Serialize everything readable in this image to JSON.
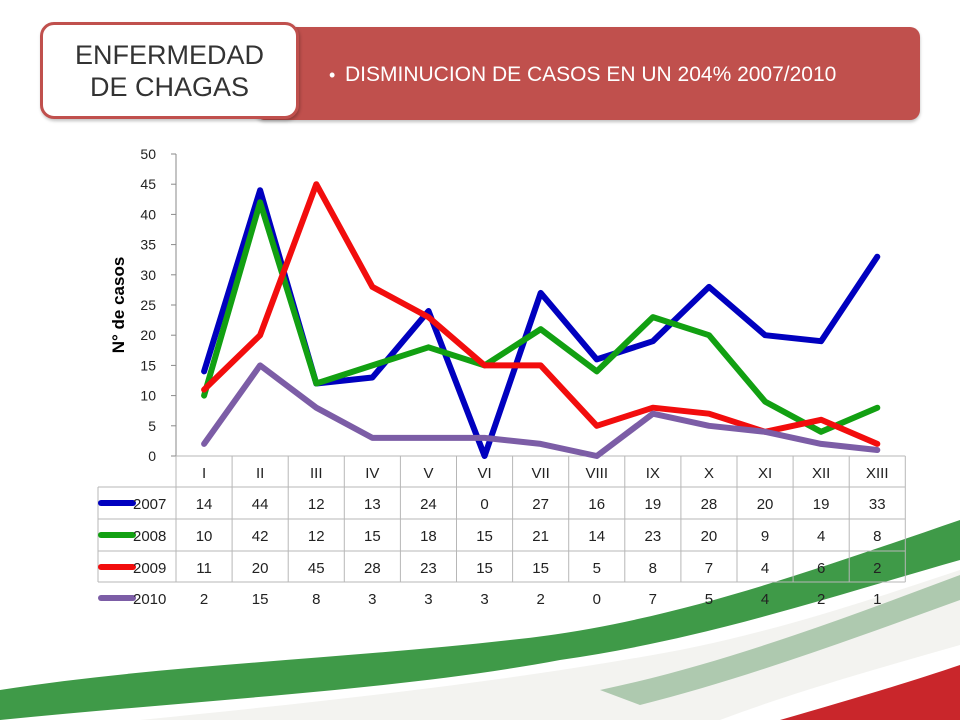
{
  "header": {
    "title": "ENFERMEDAD DE CHAGAS",
    "bullet_glyph": "•",
    "banner_text": "DISMINUCION DE CASOS EN UN 204%  2007/2010"
  },
  "colors": {
    "banner": "#c0504d",
    "series_2007": "#0000bf",
    "series_2008": "#12a012",
    "series_2009": "#f20d0d",
    "series_2010": "#7c5da6"
  },
  "chart_data": {
    "type": "line",
    "title": "",
    "xlabel": "",
    "ylabel": "N° de casos",
    "ylim": [
      0,
      50
    ],
    "yticks": [
      "0",
      "5",
      "10",
      "15",
      "20",
      "25",
      "30",
      "35",
      "40",
      "45",
      "50"
    ],
    "grid": false,
    "legend": "data-table-below",
    "categories": [
      "I",
      "II",
      "III",
      "IV",
      "V",
      "VI",
      "VII",
      "VIII",
      "IX",
      "X",
      "XI",
      "XII",
      "XIII"
    ],
    "series": [
      {
        "name": "2007",
        "color": "#0000bf",
        "values": [
          14,
          44,
          12,
          13,
          24,
          0,
          27,
          16,
          19,
          28,
          20,
          19,
          33
        ]
      },
      {
        "name": "2008",
        "color": "#12a012",
        "values": [
          10,
          42,
          12,
          15,
          18,
          15,
          21,
          14,
          23,
          20,
          9,
          4,
          8
        ]
      },
      {
        "name": "2009",
        "color": "#f20d0d",
        "values": [
          11,
          20,
          45,
          28,
          23,
          15,
          15,
          5,
          8,
          7,
          4,
          6,
          2
        ]
      },
      {
        "name": "2010",
        "color": "#7c5da6",
        "values": [
          2,
          15,
          8,
          3,
          3,
          3,
          2,
          0,
          7,
          5,
          4,
          2,
          1
        ]
      }
    ]
  }
}
